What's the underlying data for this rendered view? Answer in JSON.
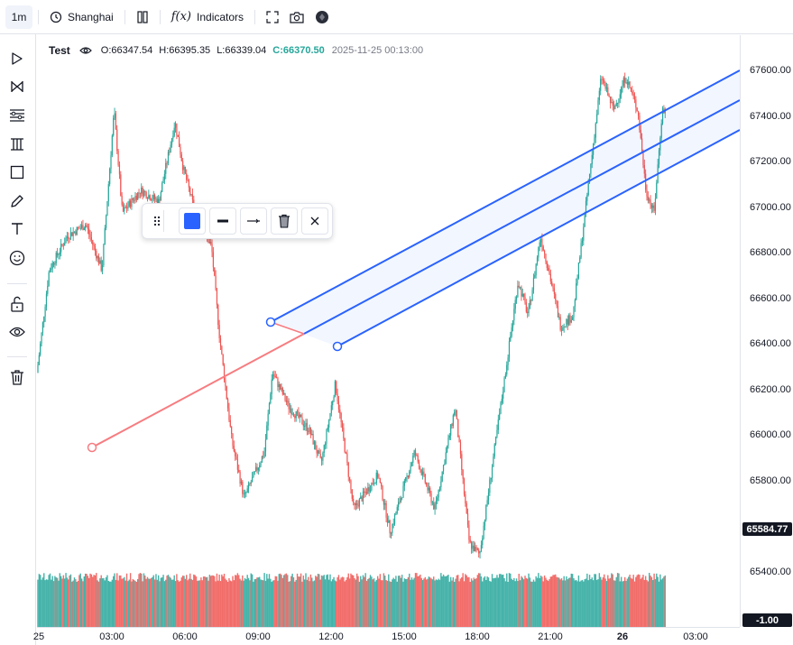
{
  "topbar": {
    "interval": "1m",
    "timezone": "Shanghai",
    "indicators": "Indicators",
    "fx": "f(x)"
  },
  "legend": {
    "symbol": "Test",
    "open": "O:66347.54",
    "high": "H:66395.35",
    "low": "L:66339.04",
    "close": "C:66370.50",
    "timestamp": "2025-11-25 00:13:00"
  },
  "price_axis": {
    "ticks": [
      "67600.00",
      "67400.00",
      "67200.00",
      "67000.00",
      "66800.00",
      "66600.00",
      "66400.00",
      "66200.00",
      "66000.00",
      "65800.00",
      "65400.00"
    ],
    "current_price": "65584.77",
    "volume_label": "-1.00"
  },
  "time_axis": {
    "ticks": [
      "25",
      "03:00",
      "06:00",
      "09:00",
      "12:00",
      "15:00",
      "18:00",
      "21:00",
      "26",
      "03:00"
    ]
  },
  "colors": {
    "up": "#26a69a",
    "down": "#ef5350",
    "drawing": "#2962ff",
    "trendline": "#f77c80"
  },
  "chart_data": {
    "type": "candlestick",
    "x_unit": "time (1m bars)",
    "ylim": [
      65300,
      67750
    ],
    "path": [
      [
        "25 00:00",
        66250
      ],
      [
        "00:30",
        66700
      ],
      [
        "01:15",
        66850
      ],
      [
        "02:00",
        66900
      ],
      [
        "02:40",
        66700
      ],
      [
        "03:10",
        67400
      ],
      [
        "03:30",
        66950
      ],
      [
        "04:15",
        67050
      ],
      [
        "05:00",
        67000
      ],
      [
        "05:40",
        67350
      ],
      [
        "06:00",
        67150
      ],
      [
        "06:30",
        66950
      ],
      [
        "07:10",
        66800
      ],
      [
        "07:30",
        66400
      ],
      [
        "08:00",
        65950
      ],
      [
        "08:30",
        65700
      ],
      [
        "09:20",
        65900
      ],
      [
        "09:40",
        66250
      ],
      [
        "10:20",
        66100
      ],
      [
        "11:10",
        66000
      ],
      [
        "11:40",
        65850
      ],
      [
        "12:15",
        66200
      ],
      [
        "13:00",
        65650
      ],
      [
        "14:00",
        65800
      ],
      [
        "14:30",
        65550
      ],
      [
        "15:30",
        65900
      ],
      [
        "16:20",
        65650
      ],
      [
        "17:10",
        66100
      ],
      [
        "17:45",
        65500
      ],
      [
        "18:10",
        65450
      ],
      [
        "18:30",
        65700
      ],
      [
        "19:10",
        66200
      ],
      [
        "19:45",
        66650
      ],
      [
        "20:10",
        66500
      ],
      [
        "20:40",
        66850
      ],
      [
        "21:00",
        66700
      ],
      [
        "21:30",
        66450
      ],
      [
        "22:00",
        66500
      ],
      [
        "22:30",
        66950
      ],
      [
        "23:10",
        67550
      ],
      [
        "23:40",
        67400
      ],
      [
        "26 00:10",
        67550
      ],
      [
        "00:40",
        67400
      ],
      [
        "01:00",
        67050
      ],
      [
        "01:20",
        66950
      ],
      [
        "01:40",
        67400
      ]
    ],
    "drawings": [
      {
        "type": "parallel-channel",
        "color": "#2962ff"
      },
      {
        "type": "trendline",
        "color": "#f77c80"
      }
    ]
  }
}
